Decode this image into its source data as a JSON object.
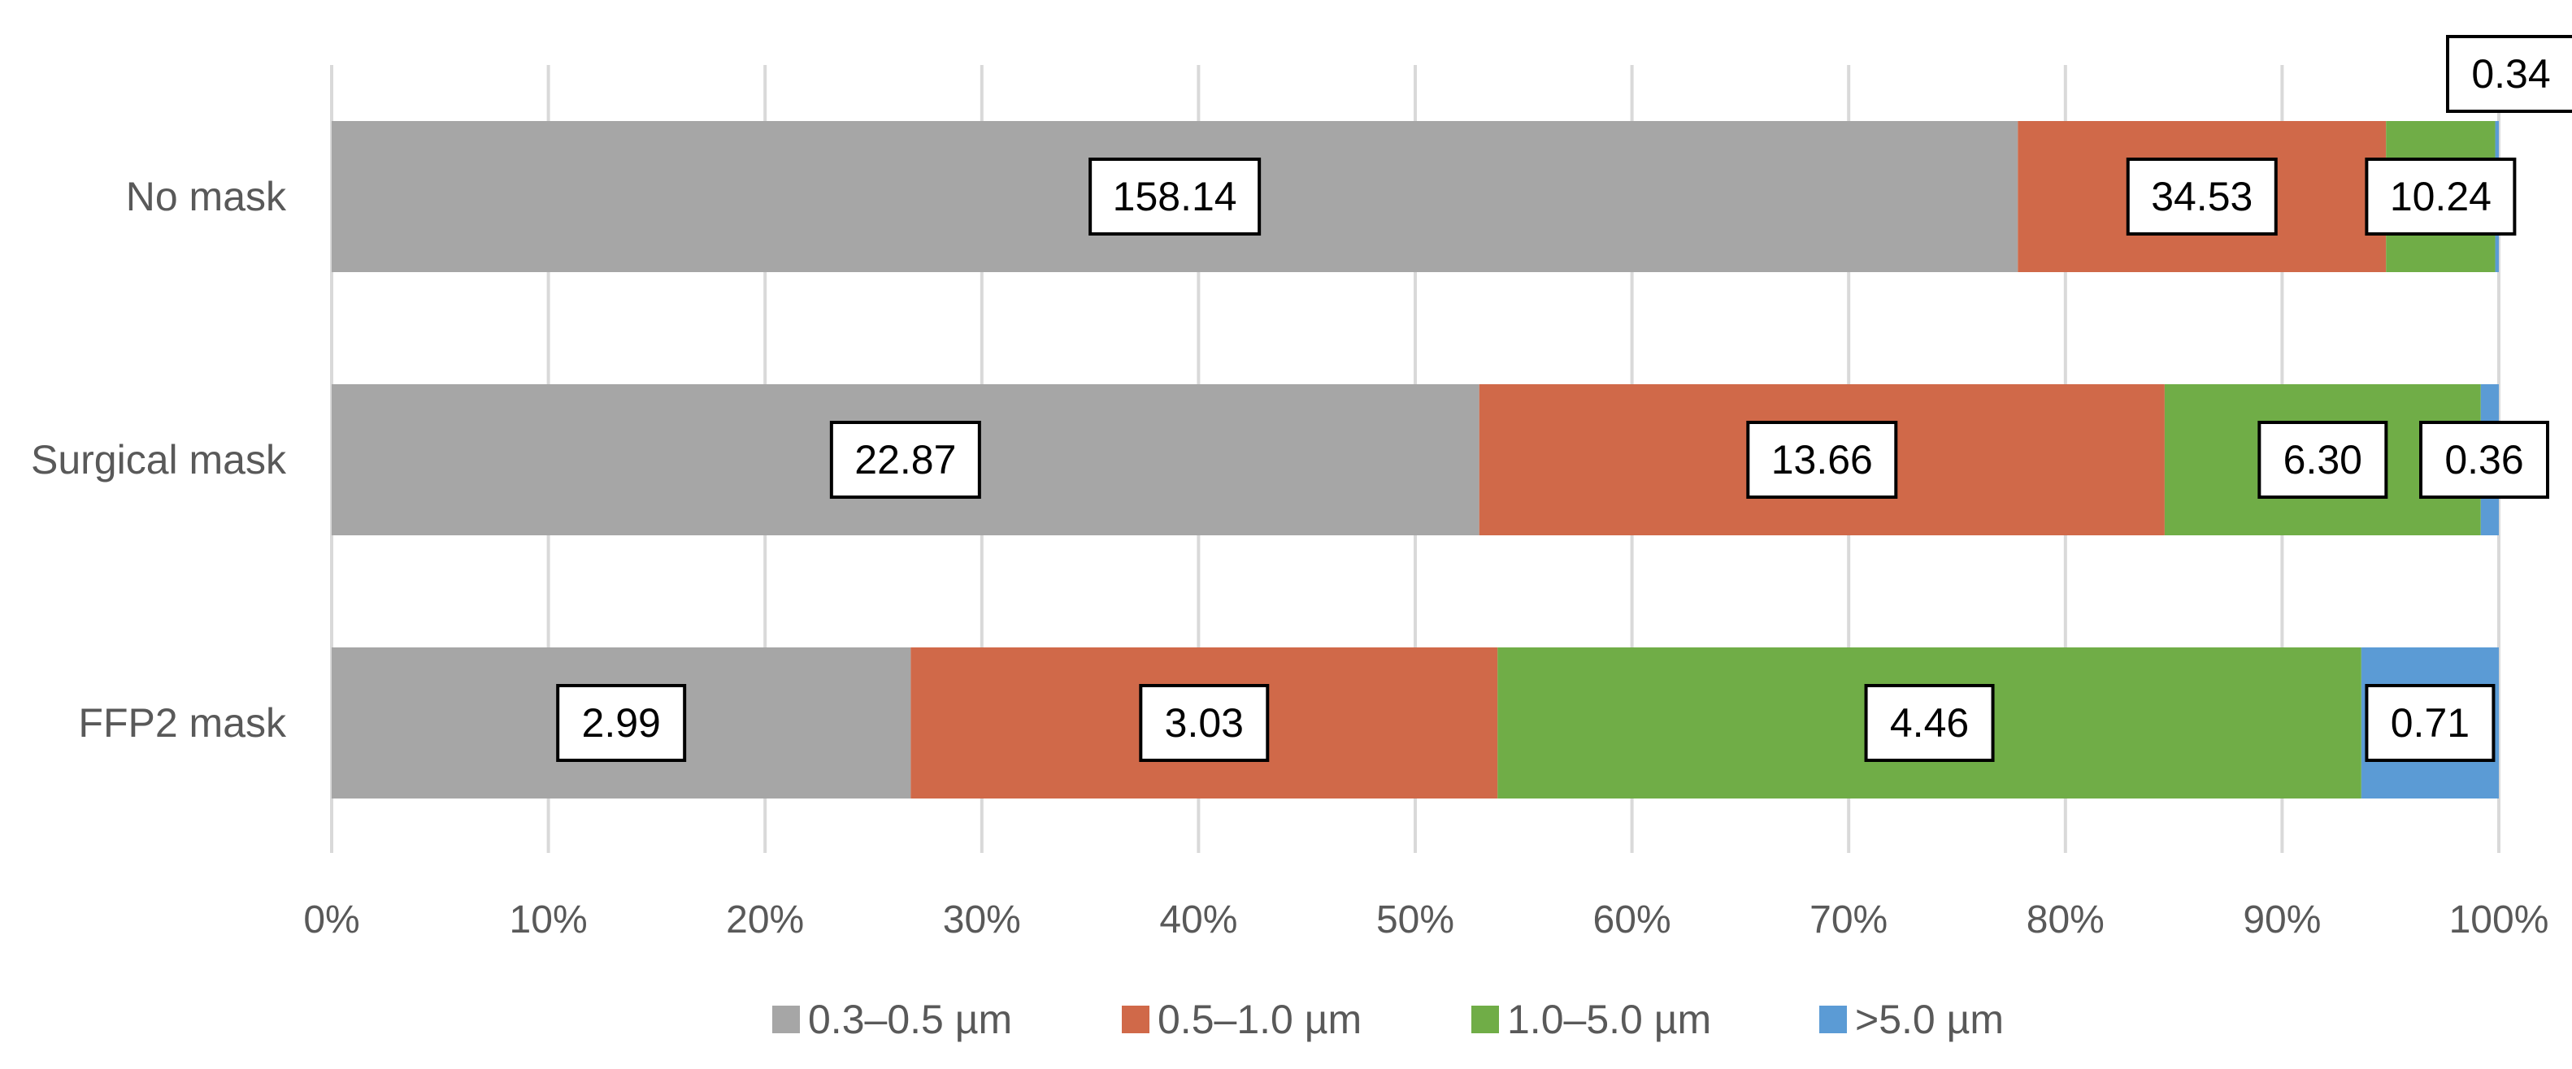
{
  "chart_data": {
    "type": "bar",
    "orientation": "horizontal",
    "stacking": "percent",
    "categories": [
      "No mask",
      "Surgical mask",
      "FFP2 mask"
    ],
    "series": [
      {
        "name": "0.3–0.5 µm",
        "values": [
          158.14,
          22.87,
          2.99
        ],
        "labels": [
          "158.14",
          "22.87",
          "2.99"
        ],
        "color": "#a6a6a6"
      },
      {
        "name": "0.5–1.0 µm",
        "values": [
          34.53,
          13.66,
          3.03
        ],
        "labels": [
          "34.53",
          "13.66",
          "3.03"
        ],
        "color": "#d06949"
      },
      {
        "name": "1.0–5.0 µm",
        "values": [
          10.24,
          6.3,
          4.46
        ],
        "labels": [
          "10.24",
          "6.30",
          "4.46"
        ],
        "color": "#70ad47"
      },
      {
        "name": ">5.0 µm",
        "values": [
          0.34,
          0.36,
          0.71
        ],
        "labels": [
          "0.34",
          "0.36",
          "0.71"
        ],
        "color": "#5b9bd5"
      }
    ],
    "x_ticks": [
      "0%",
      "10%",
      "20%",
      "30%",
      "40%",
      "50%",
      "60%",
      "70%",
      "80%",
      "90%",
      "100%"
    ],
    "xlim": [
      0,
      100
    ],
    "grid": "vertical",
    "legend": "bottom",
    "title": "",
    "xlabel": "",
    "ylabel": ""
  }
}
